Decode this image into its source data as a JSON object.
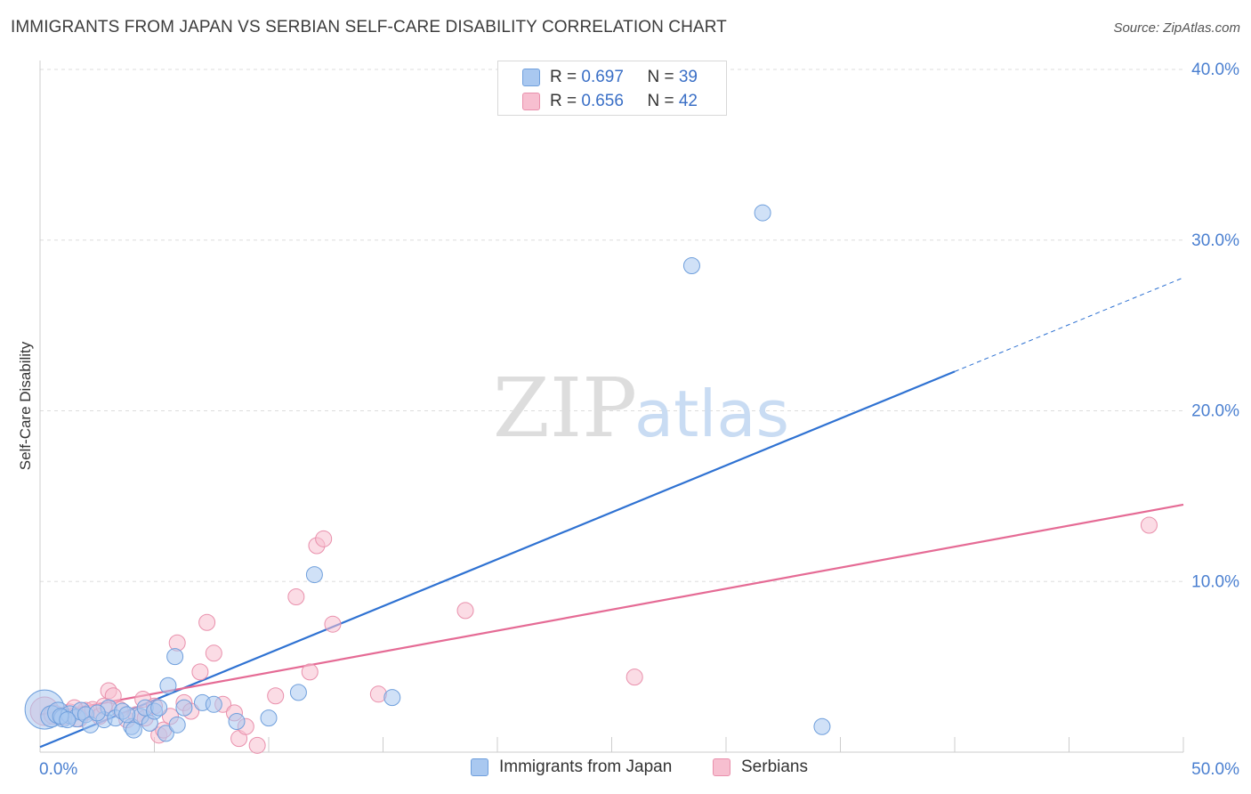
{
  "title": "IMMIGRANTS FROM JAPAN VS SERBIAN SELF-CARE DISABILITY CORRELATION CHART",
  "source": "Source: ZipAtlas.com",
  "watermark": {
    "zip": "ZIP",
    "atlas": "atlas"
  },
  "colors": {
    "japan_fill": "#a9c8f0",
    "japan_stroke": "#6f9fdc",
    "japan_line": "#2f72d2",
    "serb_fill": "#f7bfd0",
    "serb_stroke": "#e990ac",
    "serb_line": "#e56b95",
    "axis_label": "#4a7fd0",
    "grid": "#dddddd"
  },
  "stats": [
    {
      "r_label": "R = ",
      "r": "0.697",
      "n_label": "N = ",
      "n": "39"
    },
    {
      "r_label": "R = ",
      "r": "0.656",
      "n_label": "N = ",
      "n": "42"
    }
  ],
  "legend": {
    "japan": "Immigrants from Japan",
    "serb": "Serbians"
  },
  "chart_data": {
    "type": "scatter",
    "ylabel": "Self-Care Disability",
    "xlim": [
      0,
      50
    ],
    "ylim": [
      0,
      40
    ],
    "x_tick_labels": [
      {
        "value": 0,
        "label": "0.0%"
      },
      {
        "value": 50,
        "label": "50.0%"
      }
    ],
    "y_tick_labels": [
      {
        "value": 10,
        "label": "10.0%"
      },
      {
        "value": 20,
        "label": "20.0%"
      },
      {
        "value": 30,
        "label": "30.0%"
      },
      {
        "value": 40,
        "label": "40.0%"
      }
    ],
    "series": [
      {
        "name": "Immigrants from Japan",
        "R": 0.697,
        "N": 39,
        "trend": {
          "x": [
            0,
            40
          ],
          "y": [
            0.3,
            22.3
          ],
          "dashed_to": [
            50,
            27.8
          ]
        },
        "points": [
          [
            0.2,
            2.5,
            22
          ],
          [
            0.5,
            2.1,
            12
          ],
          [
            0.8,
            2.3,
            12
          ],
          [
            1.0,
            2.0,
            10
          ],
          [
            1.3,
            2.2,
            10
          ],
          [
            1.6,
            2.0,
            10
          ],
          [
            1.8,
            2.4,
            10
          ],
          [
            2.0,
            2.2,
            9
          ],
          [
            2.2,
            1.6,
            9
          ],
          [
            2.8,
            1.9,
            9
          ],
          [
            3.0,
            2.6,
            9
          ],
          [
            3.3,
            2.0,
            9
          ],
          [
            3.6,
            2.4,
            9
          ],
          [
            4.0,
            1.5,
            9
          ],
          [
            4.1,
            1.3,
            9
          ],
          [
            4.4,
            2.1,
            9
          ],
          [
            4.6,
            2.6,
            9
          ],
          [
            4.8,
            1.7,
            9
          ],
          [
            5.0,
            2.4,
            9
          ],
          [
            5.2,
            2.6,
            9
          ],
          [
            5.5,
            1.1,
            9
          ],
          [
            5.6,
            3.9,
            9
          ],
          [
            5.9,
            5.6,
            9
          ],
          [
            6.0,
            1.6,
            9
          ],
          [
            6.3,
            2.6,
            9
          ],
          [
            7.1,
            2.9,
            9
          ],
          [
            7.6,
            2.8,
            9
          ],
          [
            8.6,
            1.8,
            9
          ],
          [
            10.0,
            2.0,
            9
          ],
          [
            11.3,
            3.5,
            9
          ],
          [
            12.0,
            10.4,
            9
          ],
          [
            15.4,
            3.2,
            9
          ],
          [
            28.5,
            28.5,
            9
          ],
          [
            31.6,
            31.6,
            9
          ],
          [
            34.2,
            1.5,
            9
          ],
          [
            0.9,
            2.1,
            9
          ],
          [
            2.5,
            2.3,
            9
          ],
          [
            3.8,
            2.2,
            9
          ],
          [
            1.2,
            1.9,
            9
          ]
        ]
      },
      {
        "name": "Serbians",
        "R": 0.656,
        "N": 42,
        "trend": {
          "x": [
            0,
            50
          ],
          "y": [
            2.2,
            14.5
          ]
        },
        "points": [
          [
            0.2,
            2.4,
            16
          ],
          [
            0.6,
            2.2,
            11
          ],
          [
            1.0,
            2.1,
            10
          ],
          [
            1.3,
            2.3,
            10
          ],
          [
            1.7,
            2.0,
            10
          ],
          [
            2.0,
            2.4,
            10
          ],
          [
            2.3,
            2.5,
            9
          ],
          [
            2.6,
            2.1,
            9
          ],
          [
            3.0,
            3.6,
            9
          ],
          [
            3.2,
            3.3,
            9
          ],
          [
            3.5,
            2.5,
            9
          ],
          [
            3.8,
            1.9,
            9
          ],
          [
            4.2,
            2.2,
            9
          ],
          [
            4.5,
            3.1,
            9
          ],
          [
            4.6,
            2.0,
            9
          ],
          [
            5.0,
            2.7,
            9
          ],
          [
            5.2,
            1.0,
            9
          ],
          [
            5.4,
            1.3,
            9
          ],
          [
            5.7,
            2.1,
            9
          ],
          [
            6.0,
            6.4,
            9
          ],
          [
            6.3,
            2.9,
            9
          ],
          [
            6.6,
            2.4,
            9
          ],
          [
            7.0,
            4.7,
            9
          ],
          [
            7.3,
            7.6,
            9
          ],
          [
            7.6,
            5.8,
            9
          ],
          [
            8.0,
            2.8,
            9
          ],
          [
            8.5,
            2.3,
            9
          ],
          [
            8.7,
            0.8,
            9
          ],
          [
            9.0,
            1.5,
            9
          ],
          [
            9.5,
            0.4,
            9
          ],
          [
            10.3,
            3.3,
            9
          ],
          [
            11.2,
            9.1,
            9
          ],
          [
            11.8,
            4.7,
            9
          ],
          [
            12.1,
            12.1,
            9
          ],
          [
            12.4,
            12.5,
            9
          ],
          [
            12.8,
            7.5,
            9
          ],
          [
            14.8,
            3.4,
            9
          ],
          [
            18.6,
            8.3,
            9
          ],
          [
            26.0,
            4.4,
            9
          ],
          [
            48.5,
            13.3,
            9
          ],
          [
            1.5,
            2.6,
            9
          ],
          [
            2.8,
            2.7,
            9
          ]
        ]
      }
    ]
  }
}
